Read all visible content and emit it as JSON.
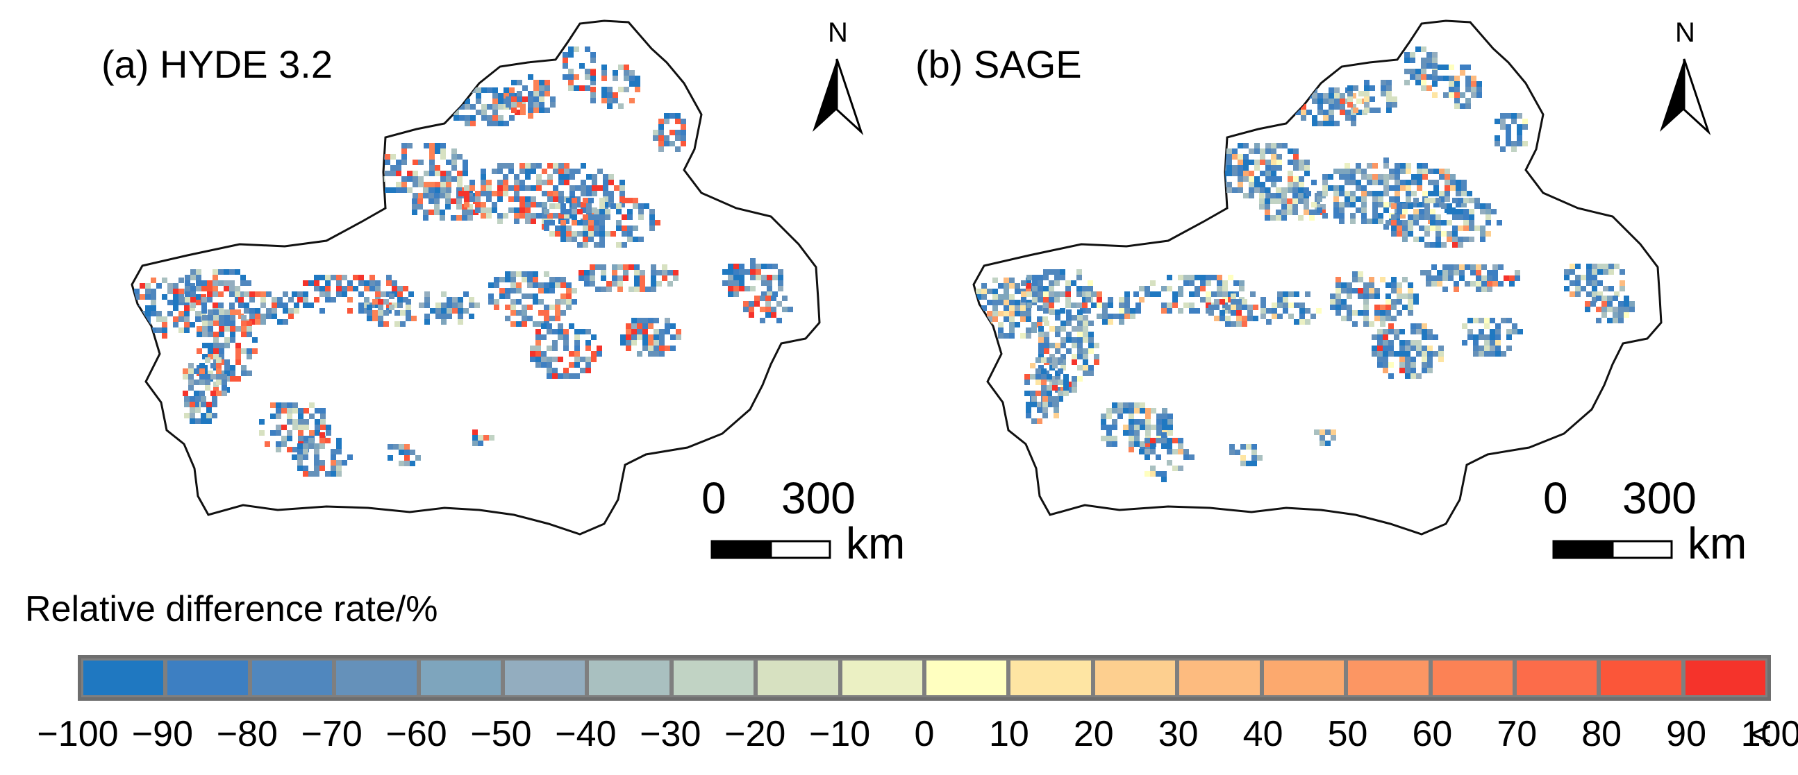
{
  "panels": [
    {
      "title": "(a) HYDE 3.2",
      "north_label": "N",
      "scale": {
        "zero": "0",
        "max": "300",
        "unit": "km"
      },
      "seed": 11,
      "red_weight": 0.22
    },
    {
      "title": "(b) SAGE",
      "north_label": "N",
      "scale": {
        "zero": "0",
        "max": "300",
        "unit": "km"
      },
      "seed": 29,
      "red_weight": 0.05
    }
  ],
  "legend": {
    "title": "Relative difference rate/%",
    "colors": [
      "#1f78c1",
      "#3d7fc2",
      "#5087be",
      "#6591ba",
      "#7ea5bd",
      "#93adbf",
      "#a9c0c0",
      "#c1d3c4",
      "#d7e1c1",
      "#ebf0c3",
      "#ffffc0",
      "#fee5a3",
      "#fdcf8f",
      "#fdbb7f",
      "#fca96e",
      "#fc9663",
      "#fc8255",
      "#fc6c4a",
      "#fb5639",
      "#f5332b"
    ],
    "tick_labels": [
      "−100",
      "−90",
      "−80",
      "−70",
      "−60",
      "−50",
      "−40",
      "−30",
      "−20",
      "−10",
      "0",
      "10",
      "20",
      "30",
      "40",
      "50",
      "60",
      "70",
      "80",
      "90",
      "100"
    ],
    "overflow_symbol": "<"
  }
}
